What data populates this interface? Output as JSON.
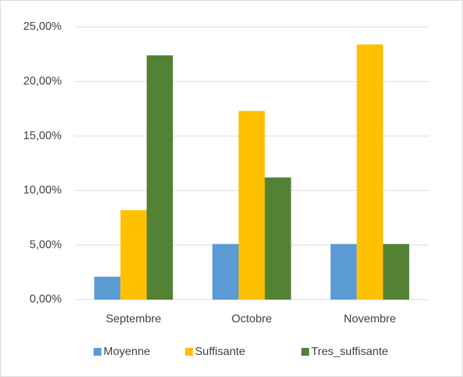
{
  "chart_data": {
    "type": "bar",
    "categories": [
      "Septembre",
      "Octobre",
      "Novembre"
    ],
    "series": [
      {
        "name": "Moyenne",
        "color": "#5b9bd5",
        "values": [
          2.1,
          5.1,
          5.1
        ]
      },
      {
        "name": "Suffisante",
        "color": "#ffc000",
        "values": [
          8.2,
          17.3,
          23.4
        ]
      },
      {
        "name": "Tres_suffisante",
        "color": "#548235",
        "values": [
          22.4,
          11.2,
          5.1
        ]
      }
    ],
    "ylim": [
      0,
      25
    ],
    "yticks": [
      {
        "value": 0,
        "label": "0,00%"
      },
      {
        "value": 5,
        "label": "5,00%"
      },
      {
        "value": 10,
        "label": "10,00%"
      },
      {
        "value": 15,
        "label": "15,00%"
      },
      {
        "value": 20,
        "label": "20,00%"
      },
      {
        "value": 25,
        "label": "25,00%"
      }
    ],
    "grid": true,
    "legend": "bottom"
  }
}
